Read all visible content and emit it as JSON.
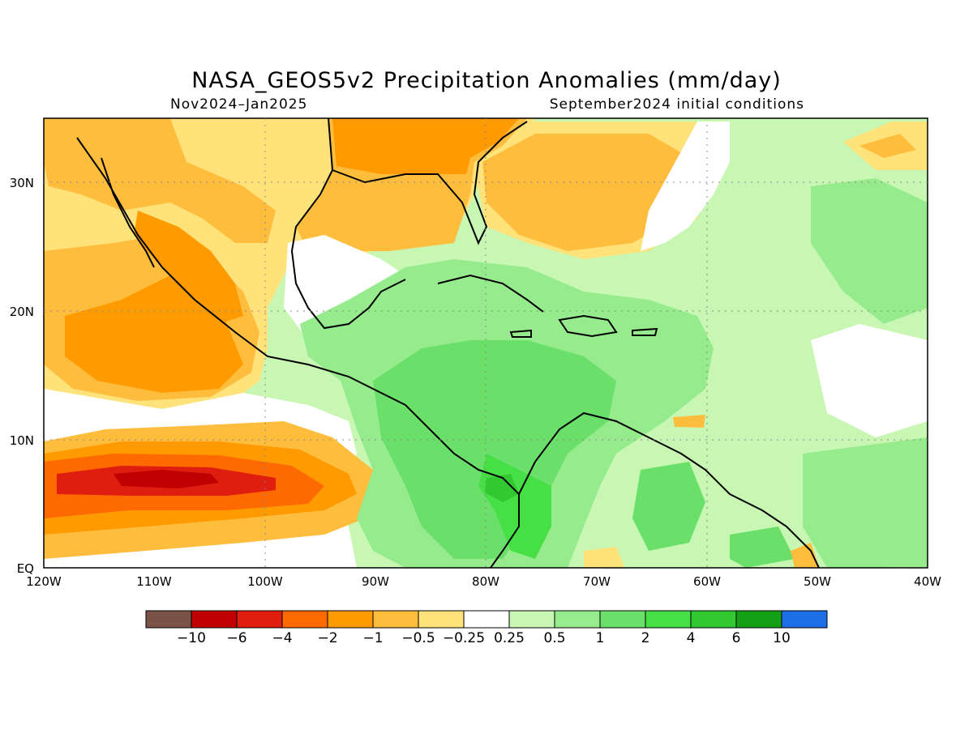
{
  "title": "NASA_GEOS5v2 Precipitation Anomalies (mm/day)",
  "period": "Nov2024–Jan2025",
  "init": "September2024 initial conditions",
  "lon_ticks": [
    "120W",
    "110W",
    "100W",
    "90W",
    "80W",
    "70W",
    "60W",
    "50W",
    "40W"
  ],
  "lat_ticks": [
    "30N",
    "20N",
    "10N",
    "EQ"
  ],
  "legend": {
    "colors": [
      "#7a5248",
      "#c00000",
      "#e01e10",
      "#ff6a00",
      "#ff9b00",
      "#ffbd3d",
      "#ffe27a",
      "#ffffff",
      "#c8f7b4",
      "#96eb8c",
      "#6ae06a",
      "#46e046",
      "#32c832",
      "#14a014",
      "#1e6ee6"
    ],
    "labels": [
      "−10",
      "−6",
      "−4",
      "−2",
      "−1",
      "−0.5",
      "−0.25",
      "0.25",
      "0.5",
      "1",
      "2",
      "4",
      "6",
      "10"
    ]
  }
}
